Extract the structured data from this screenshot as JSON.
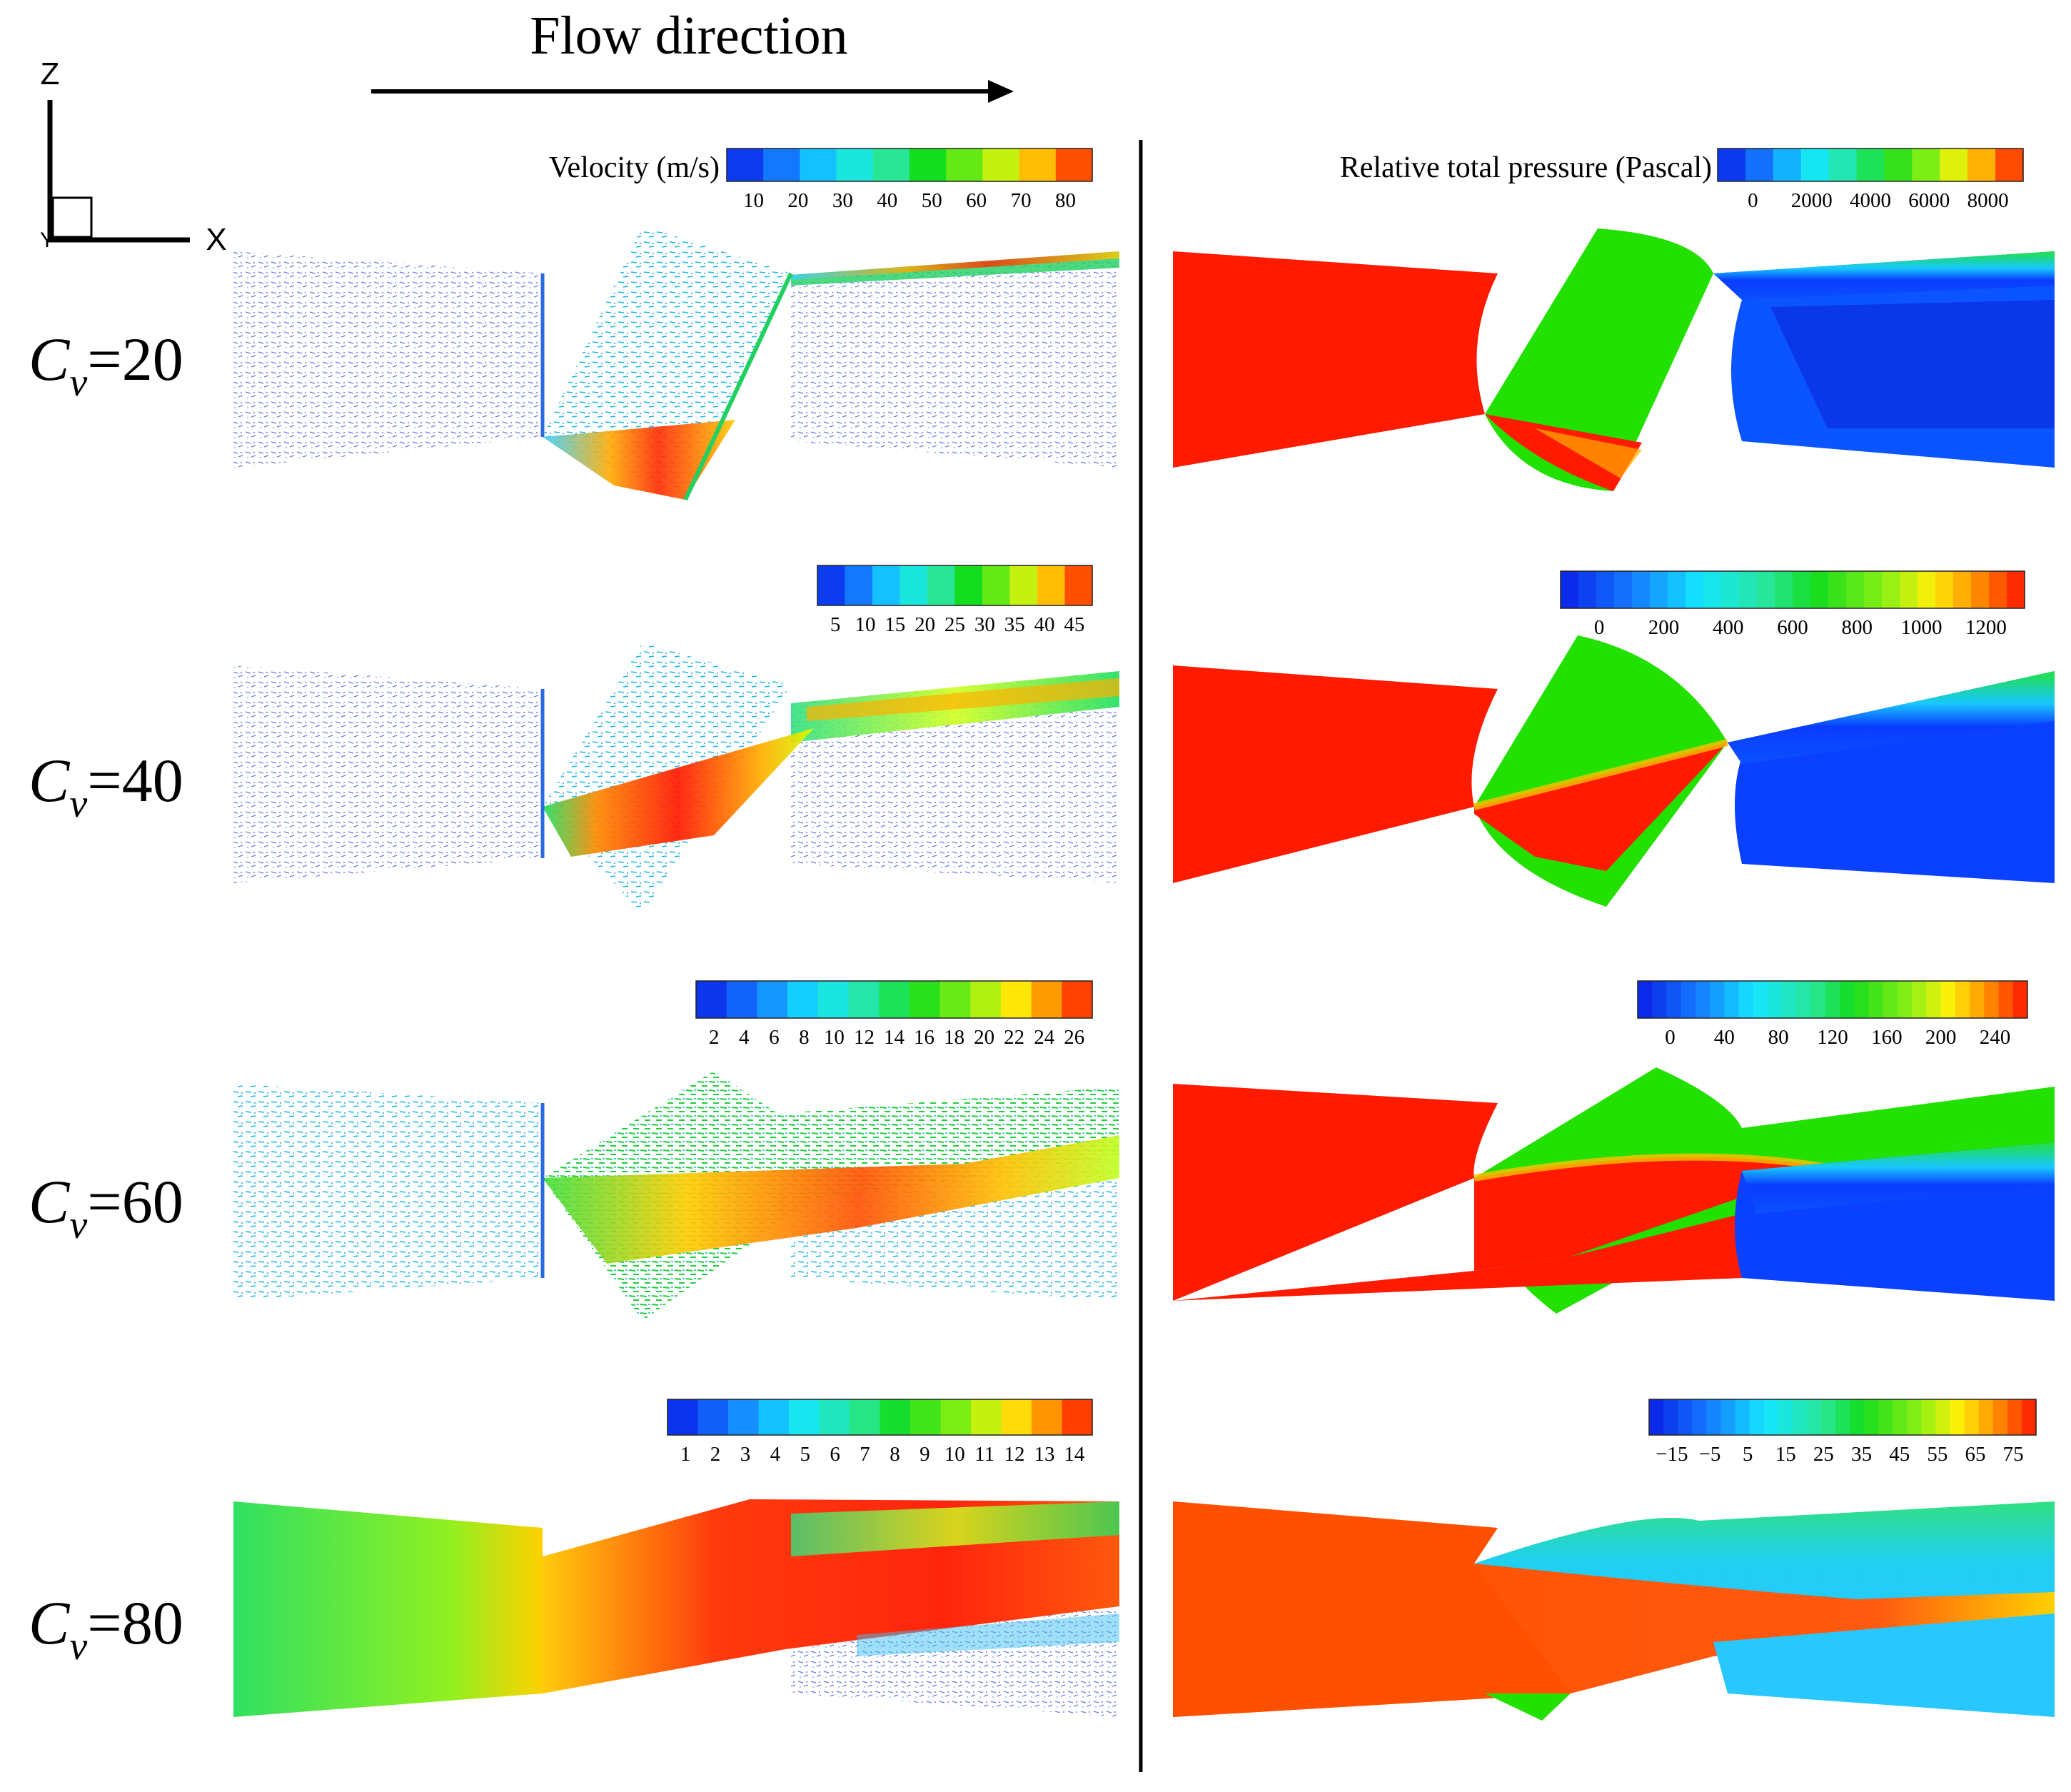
{
  "header": {
    "flow_direction": "Flow direction"
  },
  "axes_glyph": {
    "z": "Z",
    "x": "X",
    "y": "Y"
  },
  "colorbar_titles": {
    "velocity": "Velocity (m/s)",
    "pressure": "Relative total pressure (Pascal)"
  },
  "rows": [
    {
      "label_main": "C",
      "label_sub": "v",
      "label_value": "=20",
      "velocity_ticks": [
        "10",
        "20",
        "30",
        "40",
        "50",
        "60",
        "70",
        "80"
      ],
      "pressure_ticks": [
        "0",
        "2000",
        "4000",
        "6000",
        "8000"
      ],
      "velocity_bands": 10,
      "pressure_bands": 11
    },
    {
      "label_main": "C",
      "label_sub": "v",
      "label_value": "=40",
      "velocity_ticks": [
        "5",
        "10",
        "15",
        "20",
        "25",
        "30",
        "35",
        "40",
        "45"
      ],
      "pressure_ticks": [
        "0",
        "200",
        "400",
        "600",
        "800",
        "1000",
        "1200"
      ],
      "velocity_bands": 10,
      "pressure_bands": 26
    },
    {
      "label_main": "C",
      "label_sub": "v",
      "label_value": "=60",
      "velocity_ticks": [
        "2",
        "4",
        "6",
        "8",
        "10",
        "12",
        "14",
        "16",
        "18",
        "20",
        "22",
        "24",
        "26"
      ],
      "pressure_ticks": [
        "0",
        "40",
        "80",
        "120",
        "160",
        "200",
        "240"
      ],
      "velocity_bands": 13,
      "pressure_bands": 27
    },
    {
      "label_main": "C",
      "label_sub": "v",
      "label_value": "=80",
      "velocity_ticks": [
        "1",
        "2",
        "3",
        "4",
        "5",
        "6",
        "7",
        "8",
        "9",
        "10",
        "11",
        "12",
        "13",
        "14"
      ],
      "pressure_ticks": [
        "−15",
        "−5",
        "5",
        "15",
        "25",
        "35",
        "45",
        "55",
        "65",
        "75"
      ],
      "velocity_bands": 14,
      "pressure_bands": 27
    }
  ],
  "colors": {
    "red": "#ff1a00",
    "green": "#22e000",
    "blue": "#0a3cff",
    "cyan": "#38e0ff"
  }
}
